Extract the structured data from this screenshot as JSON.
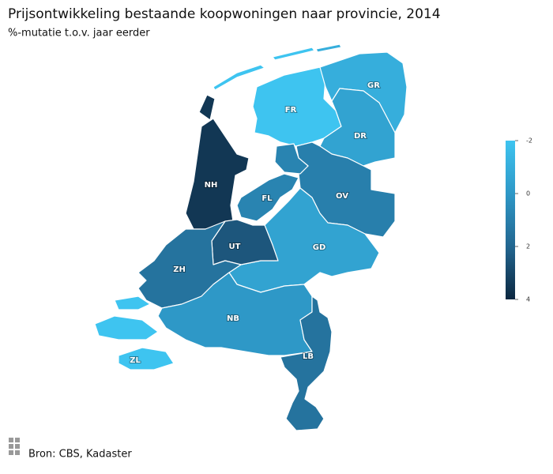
{
  "chart_data": {
    "type": "choropleth",
    "title": "Prijsontwikkeling bestaande koopwoningen naar provincie, 2014",
    "subtitle": "%-mutatie t.o.v. jaar eerder",
    "source": "Bron: CBS, Kadaster",
    "clim": [
      -2,
      4
    ],
    "cticks": [
      -2,
      0,
      2,
      4
    ],
    "provinces": [
      {
        "label": "FR",
        "value": -2
      },
      {
        "label": "GR",
        "value": -1
      },
      {
        "label": "DR",
        "value": -0.5
      },
      {
        "label": "OV",
        "value": 1
      },
      {
        "label": "FL",
        "value": 0.8
      },
      {
        "label": "GD",
        "value": -0.5
      },
      {
        "label": "NH",
        "value": 3.5
      },
      {
        "label": "UT",
        "value": 2.5
      },
      {
        "label": "ZH",
        "value": 1.5
      },
      {
        "label": "NB",
        "value": 0
      },
      {
        "label": "LB",
        "value": 1.5
      },
      {
        "label": "ZL",
        "value": -2
      }
    ]
  }
}
